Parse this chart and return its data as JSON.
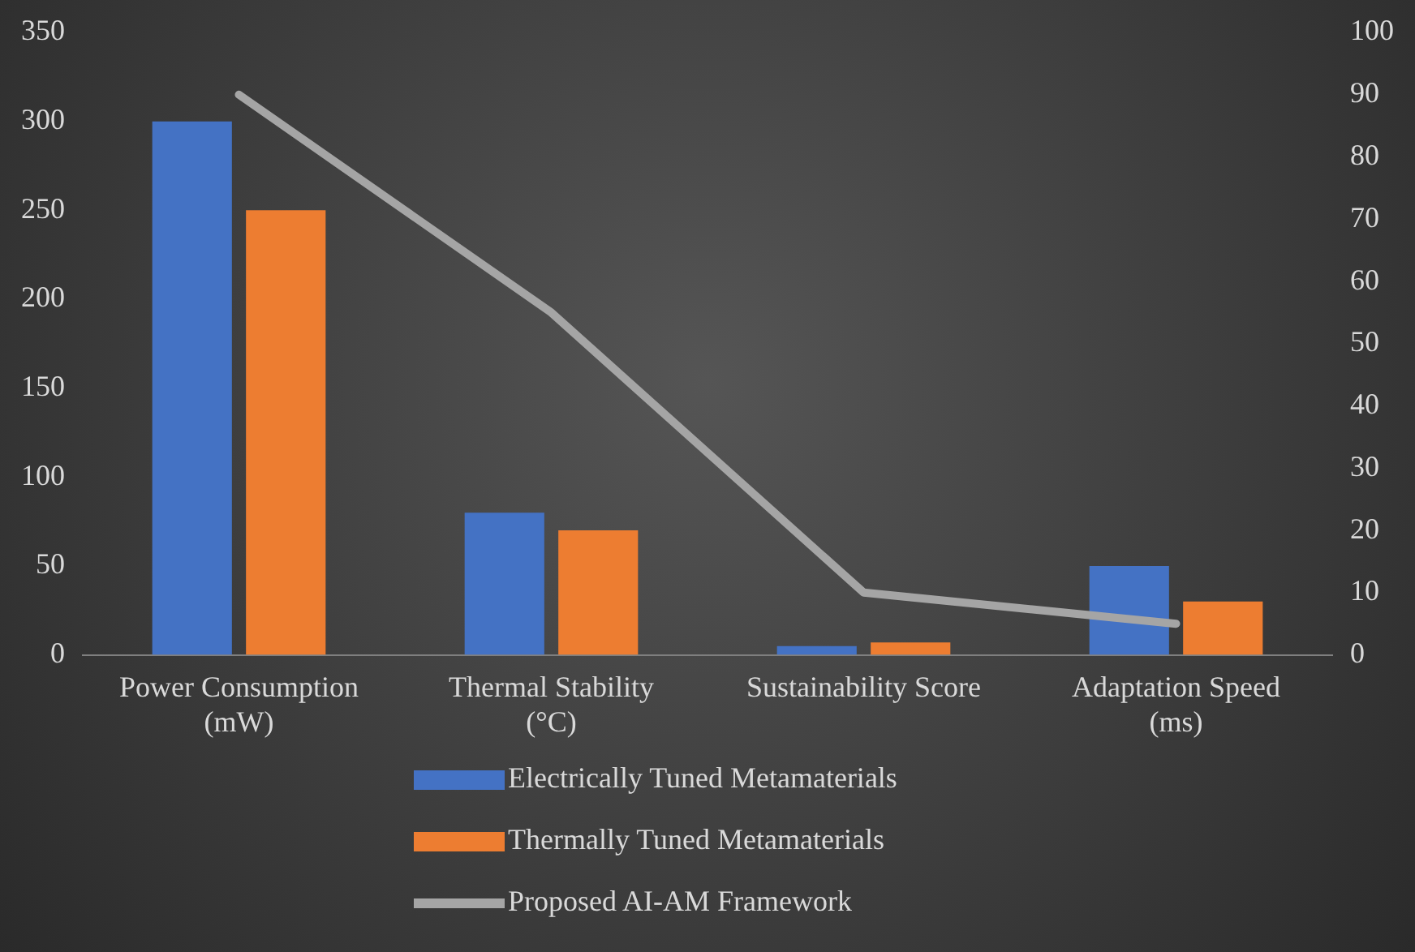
{
  "chart_data": {
    "type": "bar",
    "categories": [
      "Power Consumption (mW)",
      "Thermal Stability (°C)",
      "Sustainability Score",
      "Adaptation Speed (ms)"
    ],
    "series": [
      {
        "name": "Electrically Tuned Metamaterials",
        "color": "#4472c4",
        "values": [
          300,
          80,
          5,
          50
        ]
      },
      {
        "name": "Thermally Tuned Metamaterials",
        "color": "#ed7d31",
        "values": [
          250,
          70,
          7,
          30
        ]
      },
      {
        "name": "Proposed AI-AM Framework",
        "type": "line",
        "axis": "y2",
        "color": "#a5a5a5",
        "values": [
          90,
          55,
          10,
          5
        ],
        "marker": "none"
      }
    ],
    "ylim": [
      0,
      350
    ],
    "yticks": [
      0,
      50,
      100,
      150,
      200,
      250,
      300,
      350
    ],
    "y2lim": [
      0,
      100
    ],
    "y2ticks": [
      0,
      10,
      20,
      30,
      40,
      50,
      60,
      70,
      80,
      90,
      100
    ],
    "grid": false,
    "legend": "bottom"
  }
}
